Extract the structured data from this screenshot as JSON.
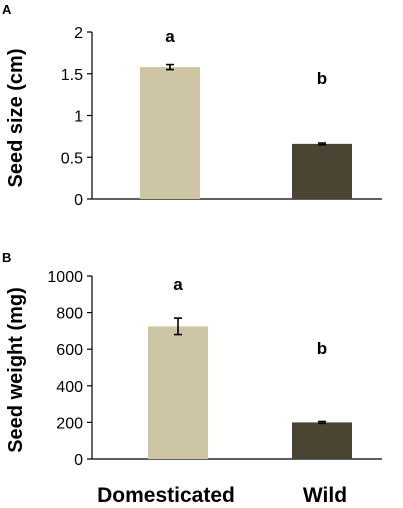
{
  "chart_data": [
    {
      "type": "bar",
      "panel": "A",
      "categories": [
        "Domesticated",
        "Wild"
      ],
      "values": [
        1.58,
        0.66
      ],
      "errors": [
        0.03,
        0.01
      ],
      "significance": [
        "a",
        "b"
      ],
      "ylabel": "Seed size (cm)",
      "ylim": [
        0,
        2
      ],
      "yticks": [
        "0",
        "0.5",
        "1",
        "1.5",
        "2"
      ],
      "colors": [
        "#cdc5a4",
        "#4a4532"
      ]
    },
    {
      "type": "bar",
      "panel": "B",
      "categories": [
        "Domesticated",
        "Wild"
      ],
      "values": [
        725,
        200
      ],
      "errors": [
        45,
        5
      ],
      "significance": [
        "a",
        "b"
      ],
      "ylabel": "Seed weight (mg)",
      "ylim": [
        0,
        1000
      ],
      "yticks": [
        "0",
        "200",
        "400",
        "600",
        "800",
        "1000"
      ],
      "colors": [
        "#cdc5a4",
        "#4a4532"
      ]
    }
  ],
  "x_axis": {
    "category_labels": [
      "Domesticated",
      "Wild"
    ]
  }
}
